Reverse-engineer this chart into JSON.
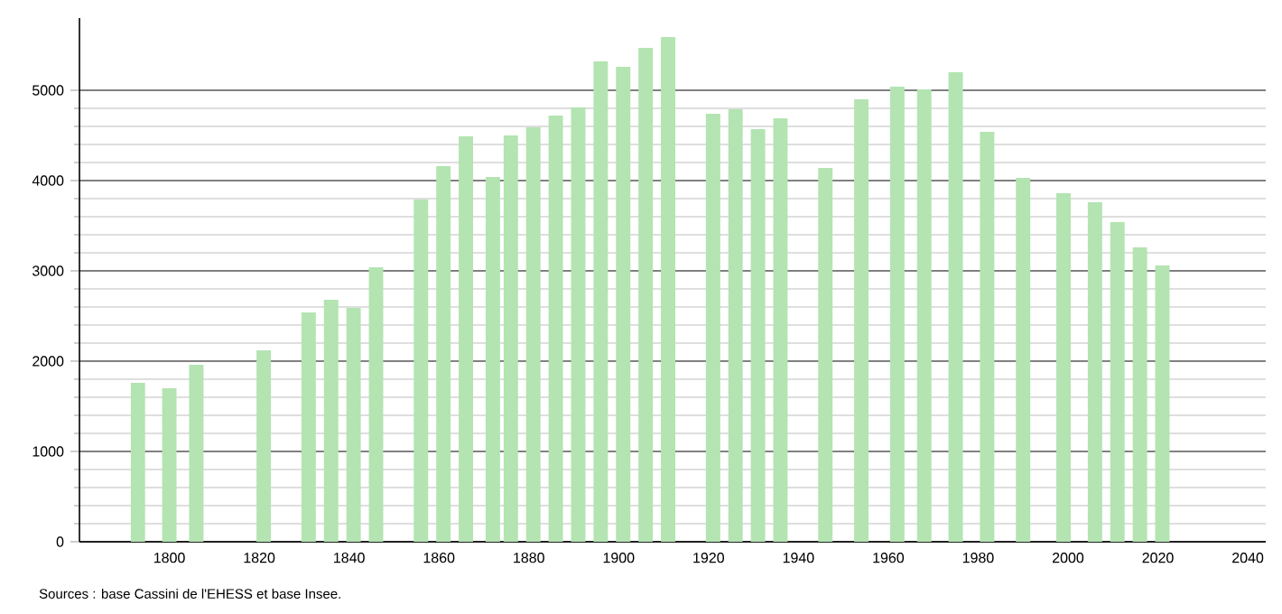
{
  "chart_data": {
    "type": "bar",
    "x": [
      1793,
      1800,
      1806,
      1821,
      1831,
      1836,
      1841,
      1846,
      1856,
      1861,
      1866,
      1872,
      1876,
      1881,
      1886,
      1891,
      1896,
      1901,
      1906,
      1911,
      1921,
      1926,
      1931,
      1936,
      1946,
      1954,
      1962,
      1968,
      1975,
      1982,
      1990,
      1999,
      2006,
      2011,
      2016,
      2021
    ],
    "values": [
      1760,
      1700,
      1960,
      2120,
      2540,
      2680,
      2590,
      3040,
      3790,
      4160,
      4490,
      4040,
      4500,
      4590,
      4720,
      4810,
      5320,
      5260,
      5470,
      5590,
      4740,
      4790,
      4570,
      4690,
      4140,
      4900,
      5040,
      5010,
      5200,
      4540,
      4030,
      3860,
      3760,
      3540,
      3260,
      3060
    ],
    "color": "#b3e4b1",
    "xlim": [
      1780,
      2044
    ],
    "xticks": [
      1800,
      1820,
      1840,
      1860,
      1880,
      1900,
      1920,
      1940,
      1960,
      1980,
      2000,
      2020,
      2040
    ],
    "ylim": [
      0,
      5800
    ],
    "yticks": [
      0,
      1000,
      2000,
      3000,
      4000,
      5000
    ],
    "grid": "y",
    "annotations": [
      "Sources : base Cassini de l'EHESS et base Insee."
    ]
  }
}
